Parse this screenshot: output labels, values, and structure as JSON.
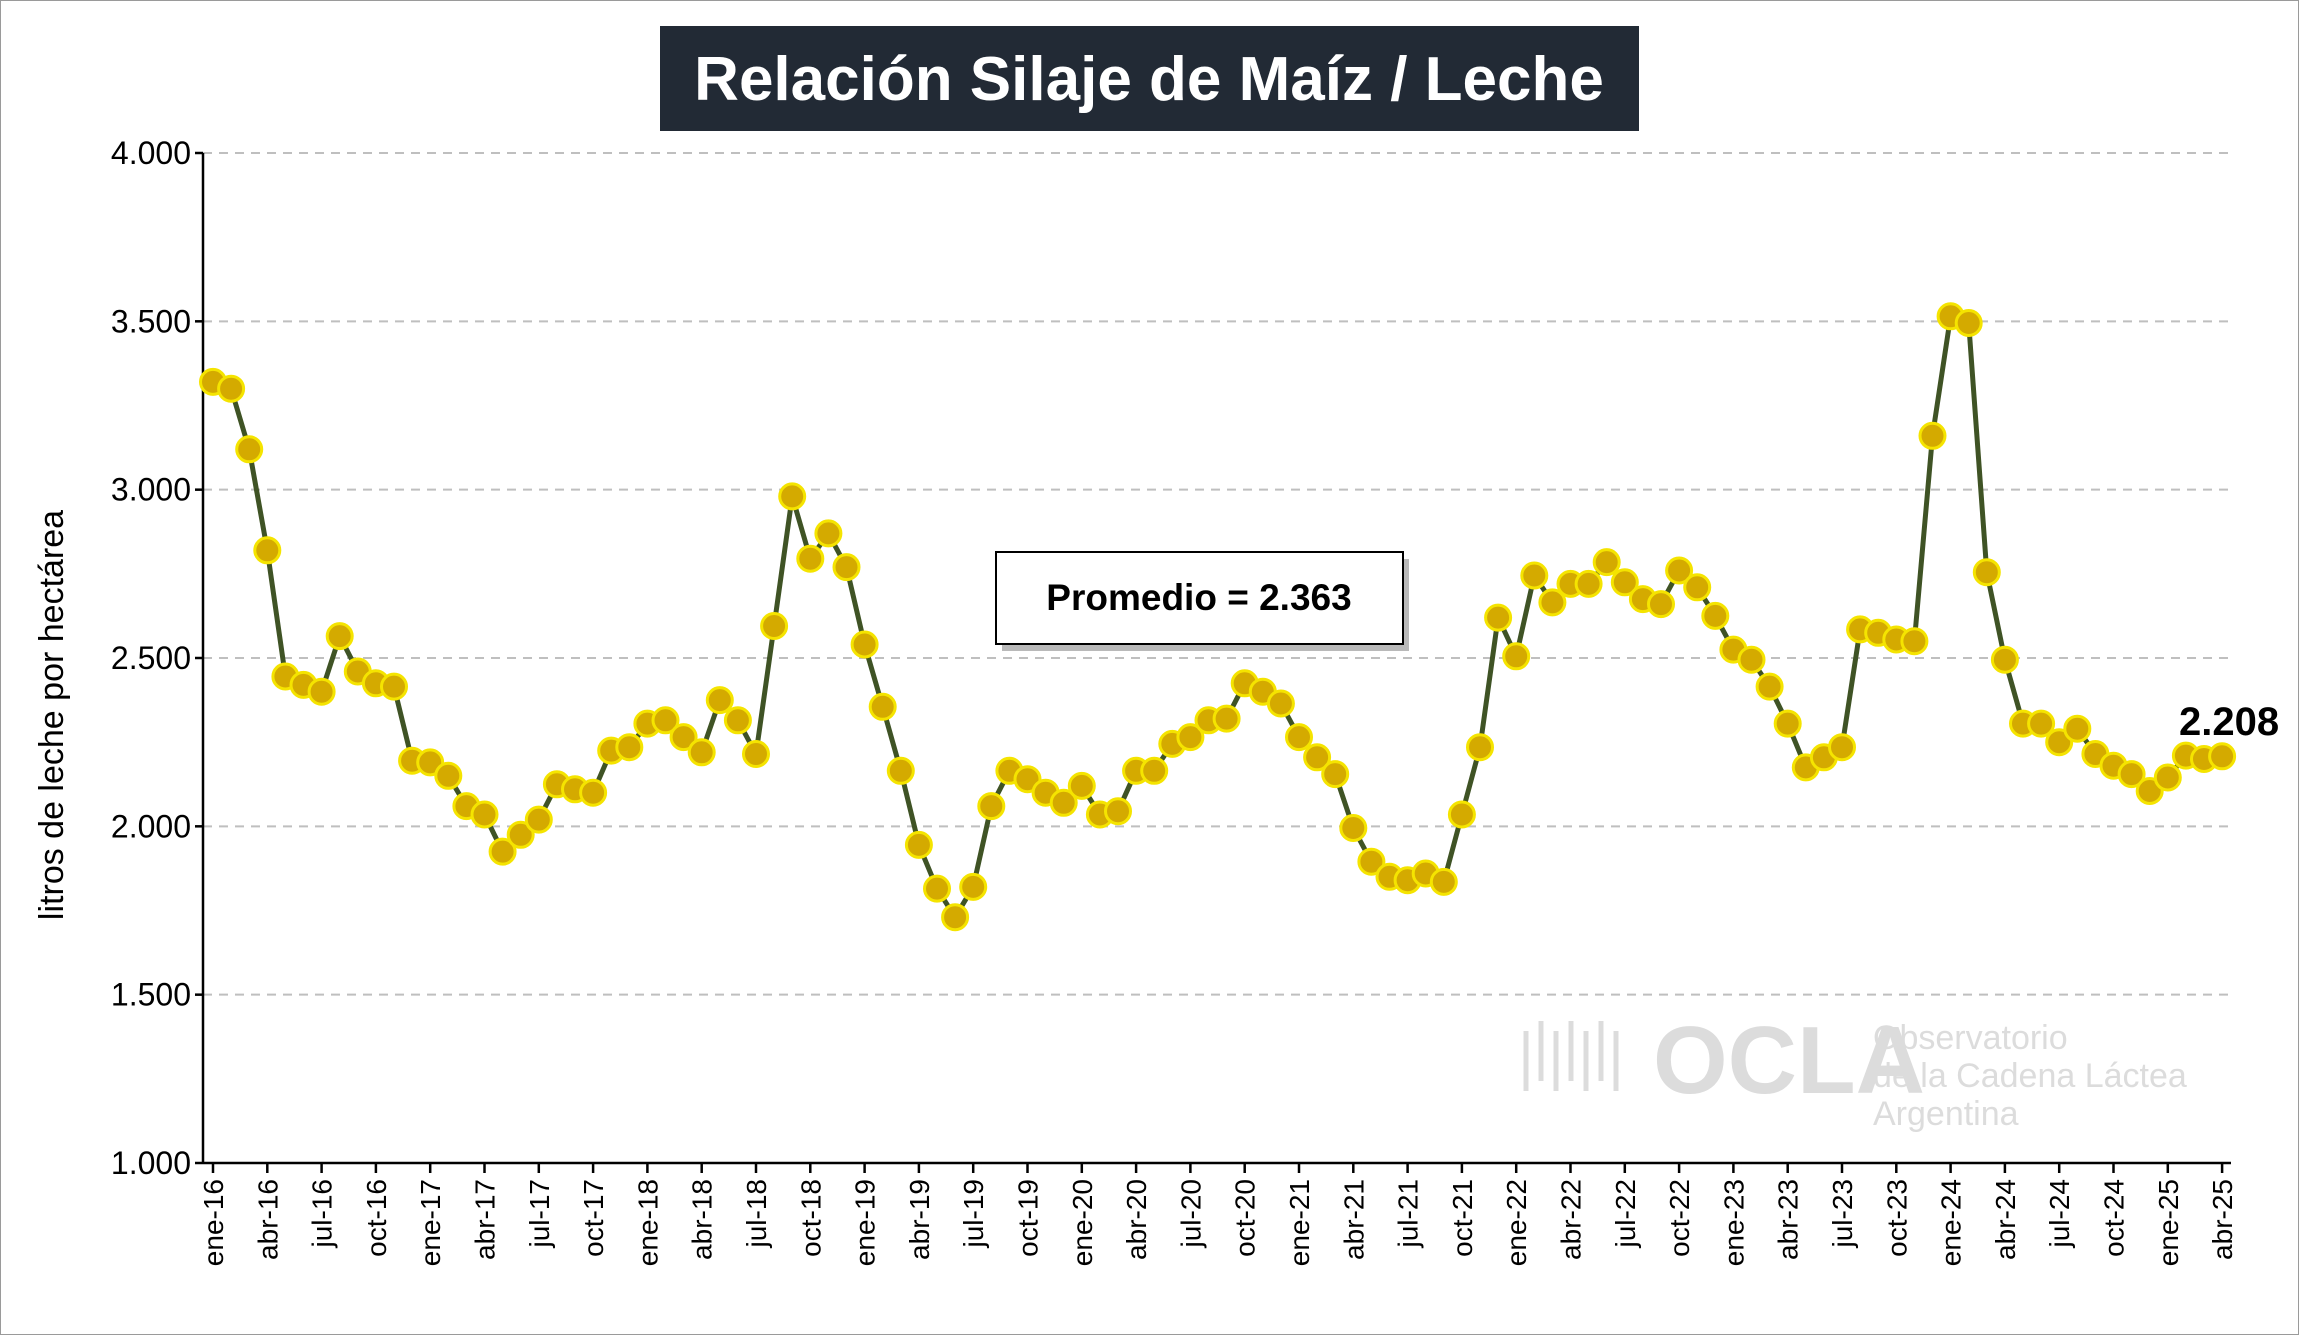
{
  "chart_data": {
    "type": "line",
    "title": "Relación Silaje de Maíz / Leche",
    "ylabel": "litros de leche por hectárea",
    "xlabel": "",
    "ylim": [
      1000,
      4000
    ],
    "yticks": [
      1000,
      1500,
      2000,
      2500,
      3000,
      3500,
      4000
    ],
    "ytick_labels": [
      "1.000",
      "1.500",
      "2.000",
      "2.500",
      "3.000",
      "3.500",
      "4.000"
    ],
    "xtick_labels": [
      "ene-16",
      "abr-16",
      "jul-16",
      "oct-16",
      "ene-17",
      "abr-17",
      "jul-17",
      "oct-17",
      "ene-18",
      "abr-18",
      "jul-18",
      "oct-18",
      "ene-19",
      "abr-19",
      "jul-19",
      "oct-19",
      "ene-20",
      "abr-20",
      "jul-20",
      "oct-20",
      "ene-21",
      "abr-21",
      "jul-21",
      "oct-21",
      "ene-22",
      "abr-22",
      "jul-22",
      "oct-22",
      "ene-23",
      "abr-23",
      "jul-23",
      "oct-23",
      "ene-24",
      "abr-24",
      "jul-24",
      "oct-24",
      "ene-25",
      "abr-25"
    ],
    "grid": true,
    "series": [
      {
        "name": "Relación Silaje de Maíz / Leche",
        "color": "#3f5325",
        "marker_color": "#d4aa00",
        "values": [
          3320,
          3300,
          3120,
          2820,
          2445,
          2420,
          2400,
          2565,
          2460,
          2425,
          2415,
          2195,
          2190,
          2150,
          2060,
          2035,
          1925,
          1975,
          2020,
          2125,
          2110,
          2100,
          2225,
          2235,
          2305,
          2315,
          2265,
          2220,
          2375,
          2315,
          2215,
          2595,
          2980,
          2795,
          2870,
          2770,
          2540,
          2355,
          2165,
          1945,
          1815,
          1730,
          1820,
          2060,
          2165,
          2140,
          2100,
          2070,
          2120,
          2035,
          2045,
          2165,
          2165,
          2245,
          2265,
          2315,
          2320,
          2425,
          2400,
          2365,
          2265,
          2205,
          2155,
          1995,
          1895,
          1850,
          1840,
          1860,
          1835,
          2035,
          2235,
          2620,
          2505,
          2745,
          2665,
          2720,
          2720,
          2785,
          2725,
          2675,
          2660,
          2760,
          2710,
          2625,
          2525,
          2495,
          2415,
          2305,
          2175,
          2205,
          2235,
          2585,
          2575,
          2555,
          2550,
          3160,
          3515,
          3495,
          2755,
          2495,
          2305,
          2305,
          2250,
          2290,
          2215,
          2180,
          2155,
          2105,
          2145,
          2210,
          2200,
          2208
        ]
      }
    ],
    "average_label": "Promedio = 2.363",
    "last_value_label": "2.208"
  },
  "watermark": {
    "logo_text": "OCLA",
    "line1": "Observatorio",
    "line2": "de la Cadena Láctea",
    "line3": "Argentina"
  }
}
